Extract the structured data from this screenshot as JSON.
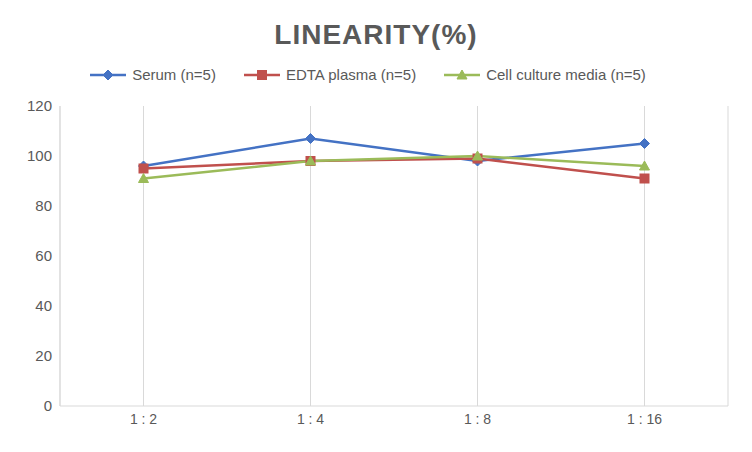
{
  "chart_data": {
    "type": "line",
    "title": "LINEARITY(%)",
    "categories": [
      "1 : 2",
      "1 : 4",
      "1 : 8",
      "1 : 16"
    ],
    "series": [
      {
        "name": "Serum (n=5)",
        "color": "#4472c4",
        "marker": "diamond",
        "line_style": "solid",
        "values": [
          96,
          107,
          98,
          105
        ]
      },
      {
        "name": "EDTA plasma (n=5)",
        "color": "#c0504d",
        "marker": "square",
        "line_style": "solid",
        "values": [
          95,
          98,
          99,
          91
        ]
      },
      {
        "name": "Cell culture media (n=5)",
        "color": "#9bbb59",
        "marker": "triangle",
        "line_style": "solid",
        "values": [
          91,
          98,
          100,
          96
        ]
      }
    ],
    "ylim": [
      0,
      120
    ],
    "yticks": [
      0,
      20,
      40,
      60,
      80,
      100,
      120
    ],
    "grid": true,
    "legend": "top"
  }
}
